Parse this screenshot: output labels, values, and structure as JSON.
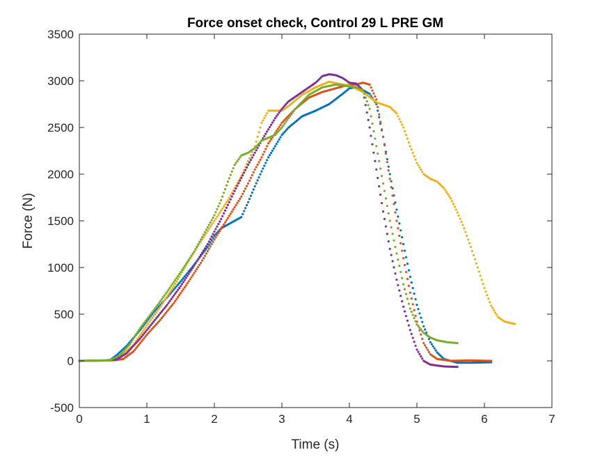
{
  "chart_data": {
    "type": "scatter",
    "title": "Force onset check, Control 29 L PRE GM",
    "xlabel": "Time (s)",
    "ylabel": "Force (N)",
    "xlim": [
      0,
      7
    ],
    "ylim": [
      -500,
      3500
    ],
    "xticks": [
      "0",
      "1",
      "2",
      "3",
      "4",
      "5",
      "6",
      "7"
    ],
    "yticks": [
      "-500",
      "0",
      "500",
      "1000",
      "1500",
      "2000",
      "2500",
      "3000",
      "3500"
    ],
    "grid": false,
    "series": [
      {
        "color": "#0072BD",
        "points": [
          [
            0,
            0
          ],
          [
            0.45,
            5
          ],
          [
            0.55,
            60
          ],
          [
            0.7,
            160
          ],
          [
            0.9,
            330
          ],
          [
            1.1,
            520
          ],
          [
            1.3,
            680
          ],
          [
            1.5,
            850
          ],
          [
            1.7,
            1030
          ],
          [
            1.9,
            1220
          ],
          [
            2.0,
            1340
          ],
          [
            2.1,
            1420
          ],
          [
            2.3,
            1500
          ],
          [
            2.4,
            1540
          ],
          [
            2.5,
            1700
          ],
          [
            2.6,
            1870
          ],
          [
            2.7,
            2030
          ],
          [
            2.8,
            2180
          ],
          [
            2.9,
            2300
          ],
          [
            3.0,
            2420
          ],
          [
            3.1,
            2500
          ],
          [
            3.2,
            2560
          ],
          [
            3.3,
            2620
          ],
          [
            3.5,
            2680
          ],
          [
            3.7,
            2750
          ],
          [
            3.9,
            2860
          ],
          [
            4.0,
            2920
          ],
          [
            4.1,
            2930
          ],
          [
            4.2,
            2900
          ],
          [
            4.3,
            2860
          ],
          [
            4.4,
            2750
          ],
          [
            4.5,
            2400
          ],
          [
            4.6,
            2000
          ],
          [
            4.7,
            1620
          ],
          [
            4.8,
            1250
          ],
          [
            4.9,
            900
          ],
          [
            5.0,
            600
          ],
          [
            5.1,
            370
          ],
          [
            5.2,
            200
          ],
          [
            5.3,
            90
          ],
          [
            5.4,
            20
          ],
          [
            5.5,
            0
          ],
          [
            5.6,
            -20
          ],
          [
            5.8,
            -20
          ],
          [
            6.1,
            -15
          ]
        ]
      },
      {
        "color": "#D95319",
        "points": [
          [
            0,
            0
          ],
          [
            0.5,
            5
          ],
          [
            0.65,
            20
          ],
          [
            0.8,
            100
          ],
          [
            1.0,
            280
          ],
          [
            1.2,
            440
          ],
          [
            1.4,
            620
          ],
          [
            1.6,
            830
          ],
          [
            1.8,
            1050
          ],
          [
            2.0,
            1300
          ],
          [
            2.2,
            1530
          ],
          [
            2.4,
            1760
          ],
          [
            2.5,
            1900
          ],
          [
            2.6,
            2050
          ],
          [
            2.7,
            2180
          ],
          [
            2.8,
            2330
          ],
          [
            3.0,
            2550
          ],
          [
            3.2,
            2700
          ],
          [
            3.4,
            2820
          ],
          [
            3.6,
            2880
          ],
          [
            3.8,
            2920
          ],
          [
            4.0,
            2960
          ],
          [
            4.1,
            2960
          ],
          [
            4.2,
            2980
          ],
          [
            4.3,
            2960
          ],
          [
            4.4,
            2800
          ],
          [
            4.5,
            2400
          ],
          [
            4.6,
            1950
          ],
          [
            4.7,
            1500
          ],
          [
            4.8,
            1100
          ],
          [
            4.9,
            730
          ],
          [
            5.0,
            420
          ],
          [
            5.1,
            190
          ],
          [
            5.2,
            70
          ],
          [
            5.3,
            20
          ],
          [
            5.5,
            0
          ],
          [
            5.8,
            5
          ],
          [
            6.1,
            0
          ]
        ]
      },
      {
        "color": "#EDB120",
        "points": [
          [
            0,
            0
          ],
          [
            0.5,
            5
          ],
          [
            0.6,
            40
          ],
          [
            0.8,
            170
          ],
          [
            1.0,
            380
          ],
          [
            1.2,
            580
          ],
          [
            1.4,
            800
          ],
          [
            1.6,
            1050
          ],
          [
            1.8,
            1280
          ],
          [
            2.0,
            1500
          ],
          [
            2.2,
            1720
          ],
          [
            2.4,
            1980
          ],
          [
            2.6,
            2300
          ],
          [
            2.7,
            2550
          ],
          [
            2.8,
            2680
          ],
          [
            3.0,
            2680
          ],
          [
            3.1,
            2730
          ],
          [
            3.3,
            2850
          ],
          [
            3.5,
            2930
          ],
          [
            3.7,
            2990
          ],
          [
            3.9,
            2960
          ],
          [
            4.0,
            2950
          ],
          [
            4.2,
            2880
          ],
          [
            4.4,
            2770
          ],
          [
            4.6,
            2720
          ],
          [
            4.7,
            2650
          ],
          [
            4.8,
            2500
          ],
          [
            4.9,
            2300
          ],
          [
            5.0,
            2120
          ],
          [
            5.1,
            2000
          ],
          [
            5.2,
            1950
          ],
          [
            5.3,
            1920
          ],
          [
            5.4,
            1850
          ],
          [
            5.5,
            1740
          ],
          [
            5.6,
            1590
          ],
          [
            5.7,
            1420
          ],
          [
            5.8,
            1220
          ],
          [
            5.9,
            1000
          ],
          [
            6.0,
            780
          ],
          [
            6.1,
            590
          ],
          [
            6.2,
            470
          ],
          [
            6.3,
            420
          ],
          [
            6.45,
            395
          ]
        ]
      },
      {
        "color": "#7E2F8E",
        "points": [
          [
            0,
            0
          ],
          [
            0.4,
            5
          ],
          [
            0.55,
            15
          ],
          [
            0.7,
            80
          ],
          [
            0.9,
            240
          ],
          [
            1.1,
            420
          ],
          [
            1.3,
            600
          ],
          [
            1.5,
            800
          ],
          [
            1.7,
            1020
          ],
          [
            1.9,
            1250
          ],
          [
            2.1,
            1520
          ],
          [
            2.3,
            1820
          ],
          [
            2.4,
            1960
          ],
          [
            2.5,
            2100
          ],
          [
            2.6,
            2230
          ],
          [
            2.7,
            2360
          ],
          [
            2.8,
            2480
          ],
          [
            2.9,
            2600
          ],
          [
            3.0,
            2700
          ],
          [
            3.1,
            2780
          ],
          [
            3.3,
            2880
          ],
          [
            3.5,
            2980
          ],
          [
            3.6,
            3050
          ],
          [
            3.7,
            3070
          ],
          [
            3.8,
            3060
          ],
          [
            3.9,
            3030
          ],
          [
            4.0,
            2980
          ],
          [
            4.1,
            2970
          ],
          [
            4.2,
            2900
          ],
          [
            4.3,
            2500
          ],
          [
            4.4,
            2050
          ],
          [
            4.5,
            1600
          ],
          [
            4.6,
            1200
          ],
          [
            4.7,
            870
          ],
          [
            4.8,
            580
          ],
          [
            4.9,
            330
          ],
          [
            5.0,
            120
          ],
          [
            5.1,
            0
          ],
          [
            5.2,
            -40
          ],
          [
            5.4,
            -60
          ],
          [
            5.6,
            -65
          ]
        ]
      },
      {
        "color": "#77AC30",
        "points": [
          [
            0,
            0
          ],
          [
            0.45,
            5
          ],
          [
            0.6,
            60
          ],
          [
            0.75,
            180
          ],
          [
            0.9,
            350
          ],
          [
            1.1,
            540
          ],
          [
            1.3,
            740
          ],
          [
            1.5,
            950
          ],
          [
            1.7,
            1170
          ],
          [
            1.9,
            1430
          ],
          [
            2.0,
            1560
          ],
          [
            2.1,
            1720
          ],
          [
            2.2,
            1920
          ],
          [
            2.3,
            2100
          ],
          [
            2.4,
            2200
          ],
          [
            2.5,
            2230
          ],
          [
            2.6,
            2280
          ],
          [
            2.7,
            2360
          ],
          [
            2.9,
            2420
          ],
          [
            3.0,
            2500
          ],
          [
            3.2,
            2700
          ],
          [
            3.4,
            2850
          ],
          [
            3.6,
            2930
          ],
          [
            3.8,
            2960
          ],
          [
            4.0,
            2940
          ],
          [
            4.1,
            2930
          ],
          [
            4.2,
            2900
          ],
          [
            4.3,
            2700
          ],
          [
            4.4,
            2300
          ],
          [
            4.5,
            1900
          ],
          [
            4.6,
            1500
          ],
          [
            4.7,
            1150
          ],
          [
            4.8,
            820
          ],
          [
            4.9,
            560
          ],
          [
            5.0,
            390
          ],
          [
            5.1,
            300
          ],
          [
            5.2,
            250
          ],
          [
            5.3,
            220
          ],
          [
            5.45,
            200
          ],
          [
            5.6,
            190
          ]
        ]
      }
    ]
  }
}
